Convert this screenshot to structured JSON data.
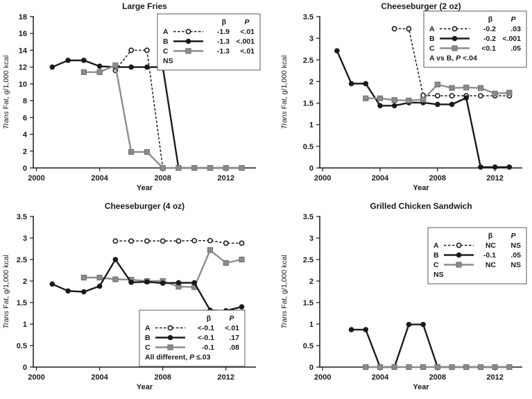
{
  "figure": {
    "background": "#ffffff",
    "xlabel": "Year",
    "ylabel": {
      "italic": "Trans",
      "rest": " Fat, g/1,000 kcal"
    }
  },
  "colors": {
    "black": "#1a1a1a",
    "gray": "#8c8c8c",
    "gray_edge": "#6f6f6f",
    "legend_border": "#595959"
  },
  "chart_data": [
    {
      "type": "line",
      "title": "Large Fries",
      "xlabel": "Year",
      "ylabel": "Trans Fat, g/1,000 kcal",
      "xlim": [
        1999.8,
        2013.9
      ],
      "ylim": [
        0,
        18
      ],
      "ytick_step": 2,
      "xticks": [
        2000,
        2004,
        2008,
        2012
      ],
      "grid": false,
      "layout": {
        "margin_left": 48
      },
      "series": [
        {
          "name": "A",
          "line": "dashed",
          "marker": "open-circle",
          "color": "#1a1a1a",
          "x": [
            2005,
            2006,
            2007,
            2008
          ],
          "y": [
            11.6,
            14,
            14,
            0
          ]
        },
        {
          "name": "B",
          "line": "solid",
          "marker": "filled-circle",
          "color": "#1a1a1a",
          "x": [
            2001,
            2002,
            2003,
            2004,
            2005,
            2006,
            2007,
            2008,
            2009,
            2010,
            2011,
            2012,
            2013
          ],
          "y": [
            12,
            12.8,
            12.8,
            12.1,
            12,
            12,
            12,
            12,
            0,
            0,
            0,
            0,
            0
          ]
        },
        {
          "name": "C",
          "line": "solid",
          "marker": "filled-square",
          "color": "#8c8c8c",
          "x": [
            2003,
            2004,
            2005,
            2006,
            2007,
            2008,
            2009,
            2010,
            2011,
            2012,
            2013
          ],
          "y": [
            11.4,
            11.4,
            12.2,
            1.9,
            1.9,
            0,
            0,
            0,
            0,
            0,
            0
          ]
        }
      ],
      "legend": {
        "position": "top-right",
        "top": 20,
        "width": 148,
        "beta_header": "β",
        "p_header": "P",
        "rows": [
          {
            "label": "A",
            "line": "dashed",
            "marker": "open-circle",
            "color": "#1a1a1a",
            "beta": "-1.9",
            "p": "<.01"
          },
          {
            "label": "B",
            "line": "solid",
            "marker": "filled-circle",
            "color": "#1a1a1a",
            "beta": "-1.3",
            "p": "<.001"
          },
          {
            "label": "C",
            "line": "solid",
            "marker": "filled-square",
            "color": "#8c8c8c",
            "beta": "-1.3",
            "p": "<.01"
          }
        ],
        "footer": {
          "pre": "NS",
          "italic": "",
          "post": ""
        }
      }
    },
    {
      "type": "line",
      "title": "Cheeseburger (2 oz)",
      "xlabel": "Year",
      "ylabel": "Trans Fat, g/1,000 kcal",
      "xlim": [
        1999.8,
        2013.9
      ],
      "ylim": [
        0,
        3.5
      ],
      "ytick_step": 0.5,
      "xticks": [
        2000,
        2004,
        2008,
        2012
      ],
      "grid": false,
      "layout": {
        "margin_left": 78
      },
      "series": [
        {
          "name": "A",
          "line": "dashed",
          "marker": "open-circle",
          "color": "#1a1a1a",
          "x": [
            2005,
            2006,
            2007,
            2008,
            2009,
            2010,
            2011,
            2012,
            2013
          ],
          "y": [
            3.22,
            3.22,
            1.68,
            1.67,
            1.67,
            1.67,
            1.67,
            1.67,
            1.67
          ]
        },
        {
          "name": "B",
          "line": "solid",
          "marker": "filled-circle",
          "color": "#1a1a1a",
          "x": [
            2001,
            2002,
            2003,
            2004,
            2005,
            2006,
            2007,
            2008,
            2009,
            2010,
            2011,
            2012,
            2013
          ],
          "y": [
            2.71,
            1.95,
            1.95,
            1.44,
            1.44,
            1.51,
            1.51,
            1.47,
            1.47,
            1.62,
            0.02,
            0.02,
            0.02
          ]
        },
        {
          "name": "C",
          "line": "solid",
          "marker": "filled-square",
          "color": "#8c8c8c",
          "x": [
            2003,
            2004,
            2005,
            2006,
            2007,
            2008,
            2009,
            2010,
            2011,
            2012,
            2013
          ],
          "y": [
            1.61,
            1.61,
            1.57,
            1.56,
            1.58,
            1.93,
            1.85,
            1.86,
            1.85,
            1.72,
            1.74
          ]
        }
      ],
      "legend": {
        "position": "top-right",
        "top": 16,
        "width": 148,
        "beta_header": "β",
        "p_header": "P",
        "rows": [
          {
            "label": "A",
            "line": "dashed",
            "marker": "open-circle",
            "color": "#1a1a1a",
            "beta": "-0.2",
            "p": ".03"
          },
          {
            "label": "B",
            "line": "solid",
            "marker": "filled-circle",
            "color": "#1a1a1a",
            "beta": "-0.2",
            "p": "<.001"
          },
          {
            "label": "C",
            "line": "solid",
            "marker": "filled-square",
            "color": "#8c8c8c",
            "beta": "<0.1",
            "p": ".05"
          }
        ],
        "footer": {
          "pre": "A vs B, ",
          "italic": "P",
          "post": " <.04"
        }
      }
    },
    {
      "type": "line",
      "title": "Cheeseburger (4 oz)",
      "xlabel": "Year",
      "ylabel": "Trans Fat, g/1,000 kcal",
      "xlim": [
        1999.8,
        2013.9
      ],
      "ylim": [
        0,
        3.5
      ],
      "ytick_step": 0.5,
      "xticks": [
        2000,
        2004,
        2008,
        2012
      ],
      "grid": false,
      "layout": {
        "margin_left": 48
      },
      "series": [
        {
          "name": "A",
          "line": "dashed",
          "marker": "open-circle",
          "color": "#1a1a1a",
          "x": [
            2005,
            2006,
            2007,
            2008,
            2009,
            2010,
            2011,
            2012,
            2013
          ],
          "y": [
            2.93,
            2.93,
            2.93,
            2.93,
            2.93,
            2.94,
            2.94,
            2.88,
            2.88
          ]
        },
        {
          "name": "C",
          "line": "solid",
          "marker": "filled-square",
          "color": "#8c8c8c",
          "x": [
            2003,
            2004,
            2005,
            2006,
            2007,
            2008,
            2009,
            2010,
            2011,
            2012,
            2013
          ],
          "y": [
            2.08,
            2.08,
            2.04,
            2.03,
            2.0,
            2.0,
            1.87,
            1.86,
            2.72,
            2.42,
            2.5
          ]
        },
        {
          "name": "B",
          "line": "solid",
          "marker": "filled-circle",
          "color": "#1a1a1a",
          "x": [
            2001,
            2002,
            2003,
            2004,
            2005,
            2006,
            2007,
            2008,
            2009,
            2010,
            2011,
            2012,
            2013
          ],
          "y": [
            1.93,
            1.77,
            1.75,
            1.88,
            2.5,
            1.97,
            1.98,
            1.95,
            1.96,
            1.96,
            1.32,
            1.31,
            1.4
          ]
        }
      ],
      "legend": {
        "position": "bottom-right",
        "width": 152,
        "beta_header": "β",
        "p_header": "P",
        "rows": [
          {
            "label": "A",
            "line": "dashed",
            "marker": "open-circle",
            "color": "#1a1a1a",
            "beta": "<-0.1",
            "p": "<.01"
          },
          {
            "label": "B",
            "line": "solid",
            "marker": "filled-circle",
            "color": "#1a1a1a",
            "beta": "<-0.1",
            "p": ".17"
          },
          {
            "label": "C",
            "line": "solid",
            "marker": "filled-square",
            "color": "#8c8c8c",
            "beta": "-0.1",
            "p": ".08"
          }
        ],
        "footer": {
          "pre": "All different, ",
          "italic": "P",
          "post": " ≤.03"
        }
      }
    },
    {
      "type": "line",
      "title": "Grilled Chicken Sandwich",
      "xlabel": "Year",
      "ylabel": "Trans Fat, g/1,000 kcal",
      "xlim": [
        1999.8,
        2013.9
      ],
      "ylim": [
        0,
        3.5
      ],
      "ytick_step": 0.5,
      "xticks": [
        2000,
        2004,
        2008,
        2012
      ],
      "grid": false,
      "layout": {
        "margin_left": 78
      },
      "series": [
        {
          "name": "B",
          "line": "solid",
          "marker": "filled-circle",
          "color": "#1a1a1a",
          "x": [
            2002,
            2003,
            2004,
            2005,
            2006,
            2007,
            2008,
            2009,
            2010,
            2011,
            2012,
            2013
          ],
          "y": [
            0.87,
            0.87,
            0,
            0,
            0.99,
            0.99,
            0,
            0,
            0,
            0,
            0,
            0
          ]
        },
        {
          "name": "C",
          "line": "solid",
          "marker": "filled-square",
          "color": "#8c8c8c",
          "x": [
            2003,
            2004,
            2005,
            2006,
            2007,
            2008,
            2009,
            2010,
            2011,
            2012,
            2013
          ],
          "y": [
            0,
            0,
            0,
            0,
            0,
            0,
            0,
            0,
            0,
            0,
            0
          ]
        }
      ],
      "legend": {
        "position": "top-right",
        "top": 40,
        "width": 142,
        "beta_header": "β",
        "p_header": "P",
        "rows": [
          {
            "label": "A",
            "line": "dashed",
            "marker": "open-circle",
            "color": "#1a1a1a",
            "beta": "NC",
            "p": "NS"
          },
          {
            "label": "B",
            "line": "solid",
            "marker": "filled-circle",
            "color": "#1a1a1a",
            "beta": "-0.1",
            "p": ".05"
          },
          {
            "label": "C",
            "line": "solid",
            "marker": "filled-square",
            "color": "#8c8c8c",
            "beta": "NC",
            "p": "NS"
          }
        ],
        "footer": {
          "pre": "NS",
          "italic": "",
          "post": ""
        }
      }
    }
  ]
}
